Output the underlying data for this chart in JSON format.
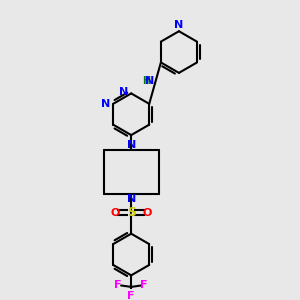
{
  "bg_color": "#e8e8e8",
  "bond_color": "#000000",
  "N_color": "#0000ff",
  "NH_color": "#008000",
  "S_color": "#cccc00",
  "O_color": "#ff0000",
  "F_color": "#ff00ff",
  "line_width": 1.5,
  "fig_size": [
    3.0,
    3.0
  ],
  "dpi": 100,
  "xlim": [
    0.15,
    0.85
  ],
  "ylim": [
    0.02,
    1.02
  ]
}
